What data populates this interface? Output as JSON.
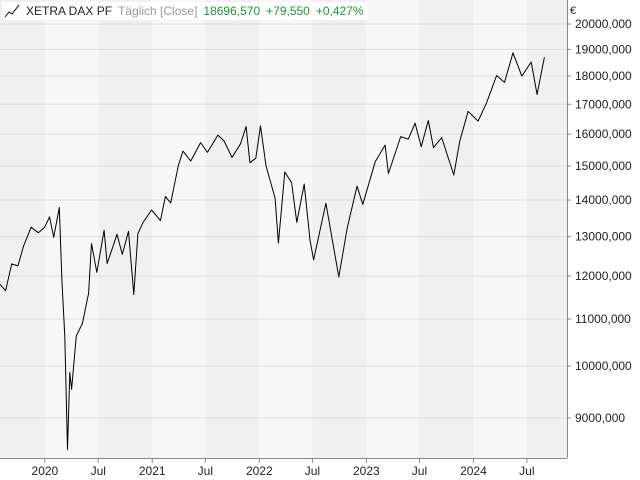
{
  "legend": {
    "symbol_icon": "line-chart-icon",
    "name": "XETRA DAX PF",
    "period": "Täglich [Close]",
    "last": "18696,570",
    "change": "+79,550",
    "change_pct": "+0,427%",
    "change_color": "#1a9a2a"
  },
  "chart_data": {
    "type": "line",
    "scale": "log",
    "currency_label": "€",
    "ylim": [
      8300,
      21000
    ],
    "y_ticks": [
      9000,
      10000,
      11000,
      12000,
      13000,
      14000,
      15000,
      16000,
      17000,
      18000,
      19000,
      20000
    ],
    "y_tick_labels": [
      "9000,000",
      "10000,000",
      "11000,000",
      "12000,000",
      "13000,000",
      "14000,000",
      "15000,000",
      "16000,000",
      "17000,000",
      "18000,000",
      "19000,000",
      "20000,000"
    ],
    "xlim": [
      "2019-08-01",
      "2024-11-15"
    ],
    "x_ticks": [
      "2020-01-01",
      "2020-07-01",
      "2021-01-01",
      "2021-07-01",
      "2022-01-01",
      "2022-07-01",
      "2023-01-01",
      "2023-07-01",
      "2024-01-01",
      "2024-07-01"
    ],
    "x_tick_labels": [
      "2020",
      "Jul",
      "2021",
      "Jul",
      "2022",
      "Jul",
      "2023",
      "Jul",
      "2024",
      "Jul"
    ],
    "grid": true,
    "band_colors": [
      "#f0f0f0",
      "#f7f7f7"
    ],
    "line_color": "#000000",
    "series": [
      {
        "name": "XETRA DAX PF",
        "points": [
          [
            "2019-08-01",
            11800
          ],
          [
            "2019-08-20",
            11650
          ],
          [
            "2019-09-10",
            12300
          ],
          [
            "2019-10-01",
            12250
          ],
          [
            "2019-10-20",
            12750
          ],
          [
            "2019-11-15",
            13250
          ],
          [
            "2019-12-10",
            13100
          ],
          [
            "2019-12-31",
            13250
          ],
          [
            "2020-01-17",
            13530
          ],
          [
            "2020-01-31",
            12980
          ],
          [
            "2020-02-19",
            13790
          ],
          [
            "2020-02-28",
            11900
          ],
          [
            "2020-03-09",
            10620
          ],
          [
            "2020-03-18",
            8440
          ],
          [
            "2020-03-26",
            9870
          ],
          [
            "2020-04-01",
            9540
          ],
          [
            "2020-04-17",
            10630
          ],
          [
            "2020-05-08",
            10900
          ],
          [
            "2020-05-29",
            11590
          ],
          [
            "2020-06-08",
            12820
          ],
          [
            "2020-06-26",
            12090
          ],
          [
            "2020-07-21",
            13170
          ],
          [
            "2020-07-31",
            12310
          ],
          [
            "2020-08-21",
            12760
          ],
          [
            "2020-09-03",
            13060
          ],
          [
            "2020-09-21",
            12540
          ],
          [
            "2020-10-12",
            13140
          ],
          [
            "2020-10-30",
            11560
          ],
          [
            "2020-11-13",
            13080
          ],
          [
            "2020-12-01",
            13380
          ],
          [
            "2020-12-30",
            13720
          ],
          [
            "2021-01-29",
            13430
          ],
          [
            "2021-02-15",
            14100
          ],
          [
            "2021-03-05",
            13920
          ],
          [
            "2021-03-31",
            15010
          ],
          [
            "2021-04-16",
            15460
          ],
          [
            "2021-05-12",
            15150
          ],
          [
            "2021-06-15",
            15730
          ],
          [
            "2021-07-08",
            15420
          ],
          [
            "2021-08-13",
            15970
          ],
          [
            "2021-09-03",
            15780
          ],
          [
            "2021-09-30",
            15260
          ],
          [
            "2021-10-29",
            15690
          ],
          [
            "2021-11-17",
            16250
          ],
          [
            "2021-11-30",
            15100
          ],
          [
            "2021-12-20",
            15240
          ],
          [
            "2022-01-05",
            16270
          ],
          [
            "2022-01-24",
            15010
          ],
          [
            "2022-02-24",
            14050
          ],
          [
            "2022-03-07",
            12830
          ],
          [
            "2022-03-29",
            14820
          ],
          [
            "2022-04-21",
            14500
          ],
          [
            "2022-05-09",
            13380
          ],
          [
            "2022-06-03",
            14460
          ],
          [
            "2022-06-23",
            12910
          ],
          [
            "2022-07-05",
            12400
          ],
          [
            "2022-08-16",
            13910
          ],
          [
            "2022-09-29",
            11980
          ],
          [
            "2022-10-28",
            13240
          ],
          [
            "2022-11-30",
            14400
          ],
          [
            "2022-12-20",
            13880
          ],
          [
            "2023-01-31",
            15130
          ],
          [
            "2023-03-06",
            15650
          ],
          [
            "2023-03-17",
            14770
          ],
          [
            "2023-04-28",
            15920
          ],
          [
            "2023-05-24",
            15840
          ],
          [
            "2023-06-16",
            16360
          ],
          [
            "2023-07-07",
            15600
          ],
          [
            "2023-07-31",
            16450
          ],
          [
            "2023-08-18",
            15570
          ],
          [
            "2023-09-15",
            15890
          ],
          [
            "2023-10-26",
            14730
          ],
          [
            "2023-11-15",
            15750
          ],
          [
            "2023-12-14",
            16760
          ],
          [
            "2024-01-17",
            16430
          ],
          [
            "2024-02-15",
            17050
          ],
          [
            "2024-03-20",
            18020
          ],
          [
            "2024-04-16",
            17770
          ],
          [
            "2024-05-15",
            18870
          ],
          [
            "2024-06-14",
            18000
          ],
          [
            "2024-07-16",
            18520
          ],
          [
            "2024-08-05",
            17340
          ],
          [
            "2024-08-30",
            18700
          ]
        ]
      }
    ]
  }
}
